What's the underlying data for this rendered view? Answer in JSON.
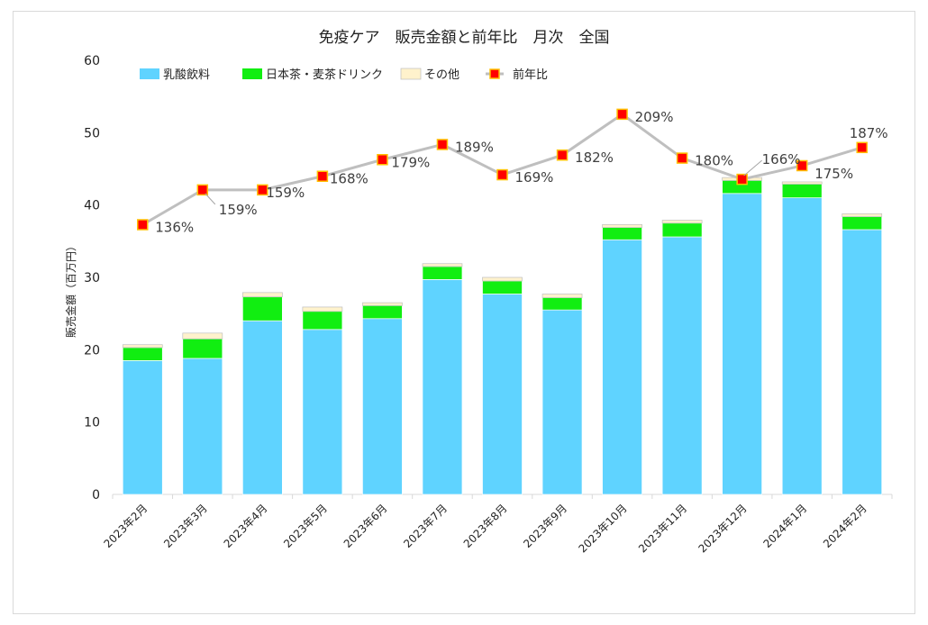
{
  "chart_data": {
    "type": "bar",
    "title": "免疫ケア　販売金額と前年比　月次　全国",
    "ylabel": "販売金額（百万円）",
    "xlabel": "",
    "ylim": [
      0,
      60
    ],
    "yticks": [
      0,
      10,
      20,
      30,
      40,
      50,
      60
    ],
    "grid": false,
    "legend_position": "top",
    "categories": [
      "2023年2月",
      "2023年3月",
      "2023年4月",
      "2023年5月",
      "2023年6月",
      "2023年7月",
      "2023年8月",
      "2023年9月",
      "2023年10月",
      "2023年11月",
      "2023年12月",
      "2024年1月",
      "2024年2月"
    ],
    "series": [
      {
        "name": "乳酸飲料",
        "kind": "bar",
        "color": "#5fd3ff",
        "values": [
          18.5,
          18.8,
          24.0,
          22.8,
          24.3,
          29.7,
          27.7,
          25.5,
          35.2,
          35.6,
          41.6,
          41.0,
          36.6
        ]
      },
      {
        "name": "日本茶・麦茶ドリンク",
        "kind": "bar",
        "color": "#11ee11",
        "values": [
          1.8,
          2.7,
          3.3,
          2.5,
          1.8,
          1.8,
          1.8,
          1.7,
          1.7,
          1.9,
          1.8,
          1.9,
          1.8
        ]
      },
      {
        "name": "その他",
        "kind": "bar",
        "color": "#fff2cc",
        "values": [
          0.4,
          0.8,
          0.6,
          0.6,
          0.4,
          0.4,
          0.5,
          0.5,
          0.4,
          0.4,
          0.4,
          0.3,
          0.4
        ]
      },
      {
        "name": "前年比",
        "kind": "line",
        "color": "#bfbfbf",
        "marker_color": "#ff0000",
        "marker_edge": "#ffc000",
        "values": [
          136,
          159,
          159,
          168,
          179,
          189,
          169,
          182,
          209,
          180,
          166,
          175,
          187
        ],
        "labels": [
          "136%",
          "159%",
          "159%",
          "168%",
          "179%",
          "189%",
          "169%",
          "182%",
          "209%",
          "180%",
          "166%",
          "175%",
          "187%"
        ]
      }
    ]
  }
}
